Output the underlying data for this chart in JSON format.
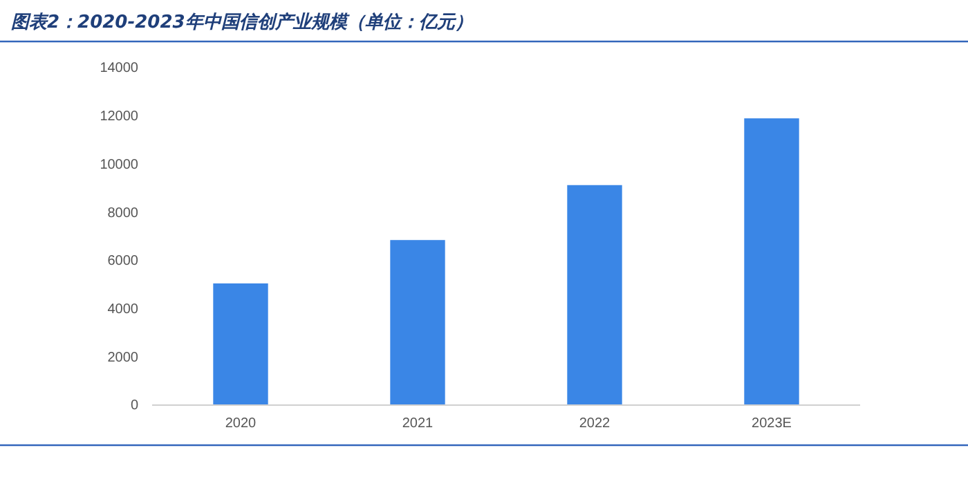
{
  "chart_data": {
    "type": "bar",
    "title": "图表2：2020-2023年中国信创产业规模（单位：亿元）",
    "categories": [
      "2020",
      "2021",
      "2022",
      "2023E"
    ],
    "values": [
      5050,
      6850,
      9130,
      11900
    ],
    "color": "#3a86e6",
    "ylim": [
      0,
      14000
    ],
    "yticks": [
      0,
      2000,
      4000,
      6000,
      8000,
      10000,
      12000,
      14000
    ],
    "grid": false
  }
}
